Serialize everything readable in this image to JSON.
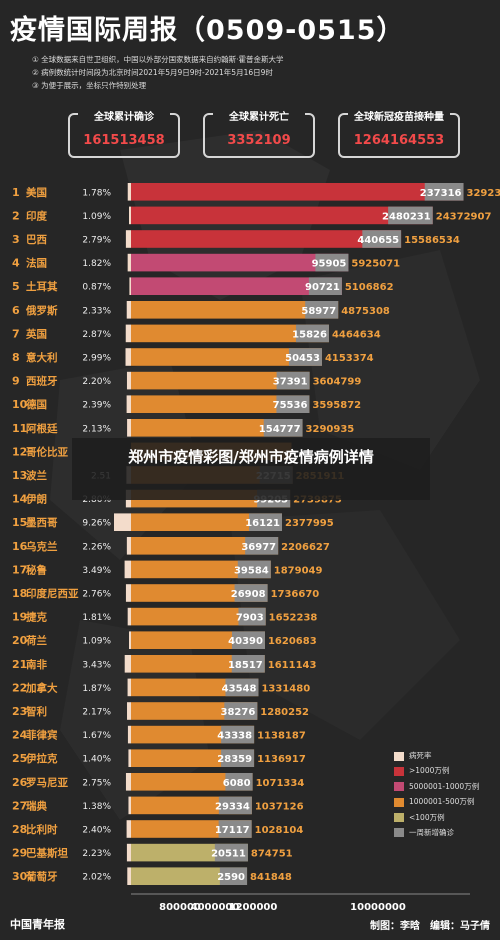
{
  "header": {
    "title": "疫情国际周报（0509-0515）",
    "notes": [
      "① 全球数据来自世卫组织，中国以外部分国家数据来自约翰斯·霍普金斯大学",
      "② 病例数统计时间段为北京时间2021年5月9日9时-2021年5月16日9时",
      "③ 为便于展示，坐标只作特别处理"
    ]
  },
  "totals": [
    {
      "label": "全球累计确诊",
      "value": "161513458"
    },
    {
      "label": "全球累计死亡",
      "value": "3352109"
    },
    {
      "label": "全球新冠疫苗接种量",
      "value": "1264164553"
    }
  ],
  "overlay": {
    "text": "郑州市疫情彩图/郑州市疫情病例详情"
  },
  "legend": {
    "items": [
      {
        "label": "病死率",
        "color": "#f3dccb"
      },
      {
        "label": ">1000万例",
        "color": "#c8333a"
      },
      {
        "label": "5000001-1000万例",
        "color": "#c24a73"
      },
      {
        "label": "1000001-500万例",
        "color": "#e08a30"
      },
      {
        "label": "<100万例",
        "color": "#bdb06a"
      },
      {
        "label": "一周新增确诊",
        "color": "#8a8a8a"
      }
    ]
  },
  "footer": {
    "logo": "中国青年报",
    "credit": "制图：李晗　编辑：马子倩"
  },
  "chart_data": {
    "type": "bar",
    "title": "疫情国际周报（0509-0515）",
    "x_tick_labels": [
      "800000",
      "4000000",
      "1200000",
      "10000000"
    ],
    "series_names": [
      "病死率",
      "累计确诊",
      "一周新增确诊"
    ],
    "rows": [
      {
        "rank": 1,
        "name": "美国",
        "rate": "1.78%",
        "weekly": "237316",
        "total": "32923177",
        "tier": ">1000万例"
      },
      {
        "rank": 2,
        "name": "印度",
        "rate": "1.09%",
        "weekly": "2480231",
        "total": "24372907",
        "tier": ">1000万例"
      },
      {
        "rank": 3,
        "name": "巴西",
        "rate": "2.79%",
        "weekly": "440655",
        "total": "15586534",
        "tier": ">1000万例"
      },
      {
        "rank": 4,
        "name": "法国",
        "rate": "1.82%",
        "weekly": "95905",
        "total": "5925071",
        "tier": "5000001-1000万例"
      },
      {
        "rank": 5,
        "name": "土耳其",
        "rate": "0.87%",
        "weekly": "90721",
        "total": "5106862",
        "tier": "5000001-1000万例"
      },
      {
        "rank": 6,
        "name": "俄罗斯",
        "rate": "2.33%",
        "weekly": "58977",
        "total": "4875308",
        "tier": "1000001-500万例"
      },
      {
        "rank": 7,
        "name": "英国",
        "rate": "2.87%",
        "weekly": "15826",
        "total": "4464634",
        "tier": "1000001-500万例"
      },
      {
        "rank": 8,
        "name": "意大利",
        "rate": "2.99%",
        "weekly": "50453",
        "total": "4153374",
        "tier": "1000001-500万例"
      },
      {
        "rank": 9,
        "name": "西班牙",
        "rate": "2.20%",
        "weekly": "37391",
        "total": "3604799",
        "tier": "1000001-500万例"
      },
      {
        "rank": 10,
        "name": "德国",
        "rate": "2.39%",
        "weekly": "75536",
        "total": "3595872",
        "tier": "1000001-500万例"
      },
      {
        "rank": 11,
        "name": "阿根廷",
        "rate": "2.13%",
        "weekly": "154777",
        "total": "3290935",
        "tier": "1000001-500万例"
      },
      {
        "rank": 12,
        "name": "哥伦比亚",
        "rate": "",
        "weekly": "",
        "total": "",
        "tier": "1000001-500万例"
      },
      {
        "rank": 13,
        "name": "波兰",
        "rate": "2.51",
        "weekly": "22715",
        "total": "2851911",
        "tier": "1000001-500万例"
      },
      {
        "rank": 14,
        "name": "伊朗",
        "rate": "2.80%",
        "weekly": "99205",
        "total": "2739875",
        "tier": "1000001-500万例"
      },
      {
        "rank": 15,
        "name": "墨西哥",
        "rate": "9.26%",
        "weekly": "16121",
        "total": "2377995",
        "tier": "1000001-500万例"
      },
      {
        "rank": 16,
        "name": "乌克兰",
        "rate": "2.26%",
        "weekly": "36977",
        "total": "2206627",
        "tier": "1000001-500万例"
      },
      {
        "rank": 17,
        "name": "秘鲁",
        "rate": "3.49%",
        "weekly": "39584",
        "total": "1879049",
        "tier": "1000001-500万例"
      },
      {
        "rank": 18,
        "name": "印度尼西亚",
        "rate": "2.76%",
        "weekly": "26908",
        "total": "1736670",
        "tier": "1000001-500万例"
      },
      {
        "rank": 19,
        "name": "捷克",
        "rate": "1.81%",
        "weekly": "7903",
        "total": "1652238",
        "tier": "1000001-500万例"
      },
      {
        "rank": 20,
        "name": "荷兰",
        "rate": "1.09%",
        "weekly": "40390",
        "total": "1620683",
        "tier": "1000001-500万例"
      },
      {
        "rank": 21,
        "name": "南非",
        "rate": "3.43%",
        "weekly": "18517",
        "total": "1611143",
        "tier": "1000001-500万例"
      },
      {
        "rank": 22,
        "name": "加拿大",
        "rate": "1.87%",
        "weekly": "43548",
        "total": "1331480",
        "tier": "1000001-500万例"
      },
      {
        "rank": 23,
        "name": "智利",
        "rate": "2.17%",
        "weekly": "38276",
        "total": "1280252",
        "tier": "1000001-500万例"
      },
      {
        "rank": 24,
        "name": "菲律宾",
        "rate": "1.67%",
        "weekly": "43338",
        "total": "1138187",
        "tier": "1000001-500万例"
      },
      {
        "rank": 25,
        "name": "伊拉克",
        "rate": "1.40%",
        "weekly": "28359",
        "total": "1136917",
        "tier": "1000001-500万例"
      },
      {
        "rank": 26,
        "name": "罗马尼亚",
        "rate": "2.75%",
        "weekly": "6080",
        "total": "1071334",
        "tier": "1000001-500万例"
      },
      {
        "rank": 27,
        "name": "瑞典",
        "rate": "1.38%",
        "weekly": "29334",
        "total": "1037126",
        "tier": "1000001-500万例"
      },
      {
        "rank": 28,
        "name": "比利时",
        "rate": "2.40%",
        "weekly": "17117",
        "total": "1028104",
        "tier": "1000001-500万例"
      },
      {
        "rank": 29,
        "name": "巴基斯坦",
        "rate": "2.23%",
        "weekly": "20511",
        "total": "874751",
        "tier": "<100万例"
      },
      {
        "rank": 30,
        "name": "葡萄牙",
        "rate": "2.02%",
        "weekly": "2590",
        "total": "841848",
        "tier": "<100万例"
      }
    ]
  }
}
